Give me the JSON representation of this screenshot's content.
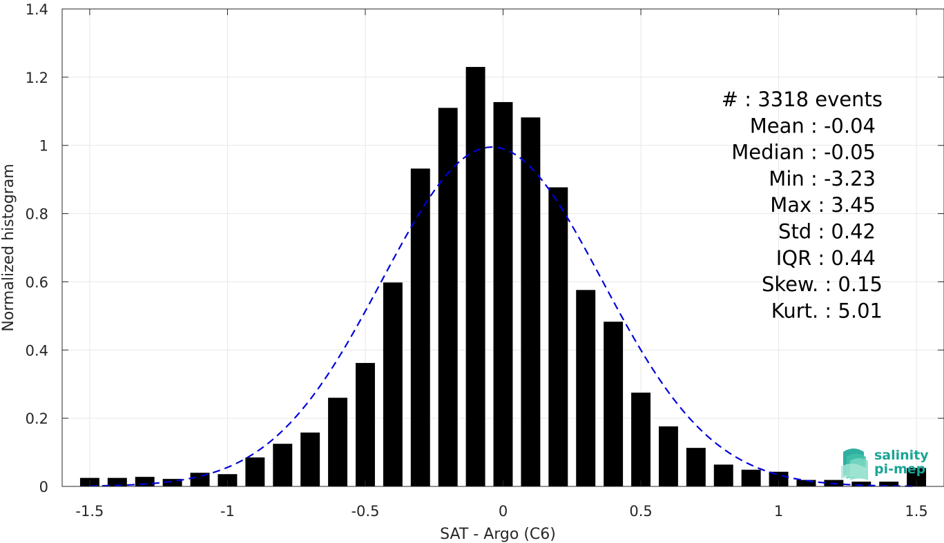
{
  "chart_data": {
    "type": "bar",
    "xlabel": "SAT - Argo (C6)",
    "ylabel": "Normalized histogram",
    "xlim": [
      -1.6,
      1.6
    ],
    "ylim": [
      0,
      1.4
    ],
    "xticks": [
      -1.5,
      -1,
      -0.5,
      0,
      0.5,
      1,
      1.5
    ],
    "xtick_labels": [
      "-1.5",
      "-1",
      "-0.5",
      "0",
      "0.5",
      "1",
      "1.5"
    ],
    "yticks": [
      0,
      0.2,
      0.4,
      0.6,
      0.8,
      1,
      1.2,
      1.4
    ],
    "ytick_labels": [
      "0",
      "0.2",
      "0.4",
      "0.6",
      "0.8",
      "1",
      "1.2",
      "1.4"
    ],
    "grid": true,
    "bar_width": 0.07,
    "bin_centers": [
      -1.5,
      -1.4,
      -1.3,
      -1.2,
      -1.1,
      -1.0,
      -0.9,
      -0.8,
      -0.7,
      -0.6,
      -0.5,
      -0.4,
      -0.3,
      -0.2,
      -0.1,
      0.0,
      0.1,
      0.2,
      0.3,
      0.4,
      0.5,
      0.6,
      0.7,
      0.8,
      0.9,
      1.0,
      1.1,
      1.2,
      1.3,
      1.4,
      1.5
    ],
    "values": [
      0.025,
      0.025,
      0.028,
      0.022,
      0.04,
      0.036,
      0.085,
      0.125,
      0.158,
      0.26,
      0.362,
      0.598,
      0.932,
      1.11,
      1.23,
      1.127,
      1.082,
      0.877,
      0.576,
      0.483,
      0.275,
      0.176,
      0.113,
      0.064,
      0.049,
      0.043,
      0.019,
      0.019,
      0.014,
      0.014,
      0.054
    ],
    "fit_curve": {
      "type": "normal",
      "mean": -0.04,
      "std": 0.4,
      "peak": 0.995,
      "color": "#0000dd",
      "style": "dashed"
    },
    "bar_color": "#000000",
    "stats": [
      {
        "label": "#  : 3318 events"
      },
      {
        "label": "Mean : -0.04"
      },
      {
        "label": "Median : -0.05"
      },
      {
        "label": "Min : -3.23"
      },
      {
        "label": "Max : 3.45"
      },
      {
        "label": "Std : 0.42"
      },
      {
        "label": "IQR : 0.44"
      },
      {
        "label": "Skew. : 0.15"
      },
      {
        "label": "Kurt. : 5.01"
      }
    ]
  },
  "logo": {
    "line1": "salinity",
    "line2": "pi-mep",
    "color": "#1aa596"
  }
}
